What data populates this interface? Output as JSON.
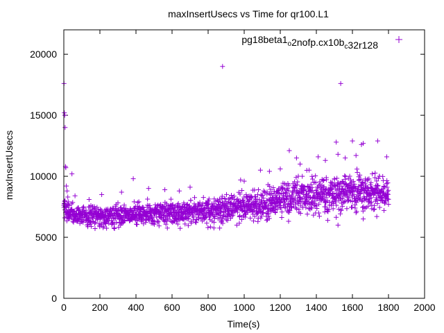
{
  "chart_data": {
    "type": "scatter",
    "title": "maxInsertUsecs vs Time for qr100.L1",
    "xlabel": "Time(s)",
    "ylabel": "maxInsertUsecs",
    "xlim": [
      0,
      2000
    ],
    "ylim": [
      0,
      22000
    ],
    "xticks": [
      0,
      200,
      400,
      600,
      800,
      1000,
      1200,
      1400,
      1600,
      1800,
      2000
    ],
    "yticks": [
      0,
      5000,
      10000,
      15000,
      20000
    ],
    "xtick_labels": [
      "0",
      "200",
      "400",
      "600",
      "800",
      "1000",
      "1200",
      "1400",
      "1600",
      "1800",
      "2000"
    ],
    "ytick_labels": [
      "0",
      "5000",
      "10000",
      "15000",
      "20000"
    ],
    "grid": false,
    "legend_position": "top-right",
    "marker": "plus",
    "color": "#9400d3",
    "series": [
      {
        "name": "pg18beta1_o2nofp.cx10b_c32r128",
        "legend_parts": [
          {
            "text": "pg18beta1",
            "sub": false
          },
          {
            "text": "o",
            "sub": true
          },
          {
            "text": "2nofp.cx10b",
            "sub": false
          },
          {
            "text": "c",
            "sub": true
          },
          {
            "text": "32r128",
            "sub": false
          }
        ],
        "points": [
          [
            1,
            17600
          ],
          [
            3,
            15200
          ],
          [
            5,
            15000
          ],
          [
            7,
            14000
          ],
          [
            9,
            10800
          ],
          [
            11,
            10700
          ],
          [
            14,
            9200
          ],
          [
            18,
            8800
          ],
          [
            22,
            8300
          ],
          [
            26,
            7900
          ],
          [
            30,
            7600
          ],
          [
            45,
            10200
          ],
          [
            62,
            8400
          ],
          [
            140,
            8100
          ],
          [
            210,
            8500
          ],
          [
            320,
            8700
          ],
          [
            385,
            9800
          ],
          [
            470,
            9000
          ],
          [
            560,
            8900
          ],
          [
            640,
            8800
          ],
          [
            700,
            9100
          ],
          [
            880,
            19000
          ],
          [
            980,
            9700
          ],
          [
            1000,
            9600
          ],
          [
            1090,
            10500
          ],
          [
            1140,
            10400
          ],
          [
            1200,
            10600
          ],
          [
            1250,
            12100
          ],
          [
            1290,
            11500
          ],
          [
            1310,
            11000
          ],
          [
            1360,
            10500
          ],
          [
            1410,
            11600
          ],
          [
            1450,
            11300
          ],
          [
            1510,
            12800
          ],
          [
            1520,
            11800
          ],
          [
            1535,
            17600
          ],
          [
            1560,
            11500
          ],
          [
            1600,
            12900
          ],
          [
            1620,
            11700
          ],
          [
            1650,
            12600
          ],
          [
            1660,
            12700
          ],
          [
            1710,
            10200
          ],
          [
            1740,
            12900
          ],
          [
            1790,
            11600
          ],
          [
            1520,
            6000
          ],
          [
            1660,
            6500
          ],
          [
            1735,
            6700
          ],
          [
            1775,
            7200
          ],
          [
            1800,
            7700
          ]
        ],
        "trend": [
          [
            0,
            7200
          ],
          [
            100,
            6800
          ],
          [
            200,
            6600
          ],
          [
            300,
            6800
          ],
          [
            400,
            6900
          ],
          [
            500,
            6950
          ],
          [
            600,
            7000
          ],
          [
            700,
            7100
          ],
          [
            800,
            7200
          ],
          [
            900,
            7300
          ],
          [
            1000,
            7500
          ],
          [
            1100,
            7800
          ],
          [
            1200,
            8000
          ],
          [
            1300,
            8300
          ],
          [
            1400,
            8500
          ],
          [
            1500,
            8600
          ],
          [
            1600,
            8700
          ],
          [
            1700,
            8600
          ],
          [
            1800,
            8500
          ]
        ],
        "spread": [
          [
            0,
            900
          ],
          [
            100,
            700
          ],
          [
            200,
            750
          ],
          [
            300,
            800
          ],
          [
            400,
            850
          ],
          [
            500,
            850
          ],
          [
            600,
            900
          ],
          [
            700,
            900
          ],
          [
            800,
            950
          ],
          [
            900,
            1000
          ],
          [
            1000,
            1050
          ],
          [
            1100,
            1150
          ],
          [
            1200,
            1250
          ],
          [
            1300,
            1350
          ],
          [
            1400,
            1400
          ],
          [
            1500,
            1400
          ],
          [
            1600,
            1400
          ],
          [
            1700,
            1300
          ],
          [
            1800,
            1100
          ]
        ],
        "x_step": 1
      }
    ]
  }
}
